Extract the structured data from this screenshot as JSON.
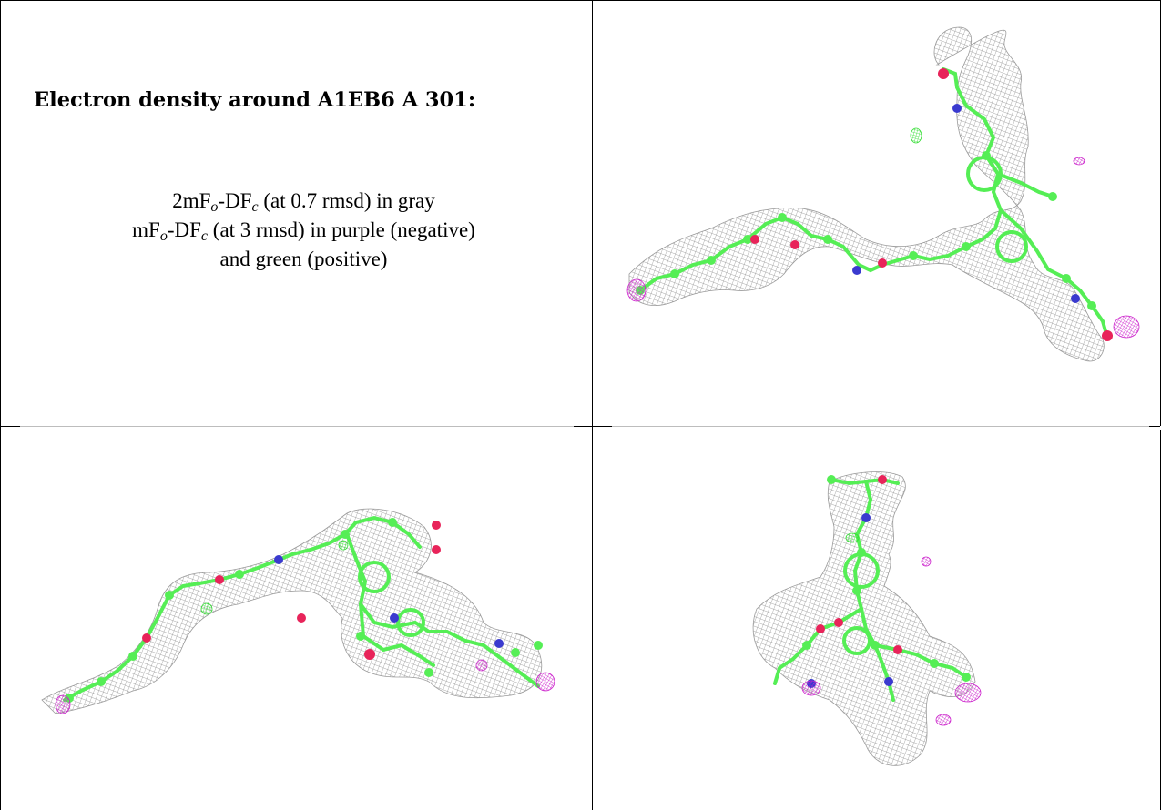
{
  "title": "Electron density around A1EB6 A 301:",
  "legend": {
    "line1": {
      "prefix": "2mF",
      "sub1": "o",
      "mid": "-DF",
      "sub2": "c",
      "suffix": " (at 0.7 rmsd) in gray"
    },
    "line2": {
      "prefix": "mF",
      "sub1": "o",
      "mid": "-DF",
      "sub2": "c",
      "suffix": " (at 3 rmsd) in purple (negative)"
    },
    "line3": "and green (positive)"
  },
  "colors": {
    "mesh": "#8c8c8c",
    "carbon": "#55ee55",
    "oxygen": "#e8245a",
    "nitrogen": "#3a3acf",
    "negative": "#cc22cc",
    "positive": "#33dd33"
  },
  "panels": [
    {
      "name": "view-top-right",
      "icon": "electron-density-map-icon"
    },
    {
      "name": "view-bottom-left",
      "icon": "electron-density-map-icon"
    },
    {
      "name": "view-bottom-right",
      "icon": "electron-density-map-icon"
    }
  ]
}
